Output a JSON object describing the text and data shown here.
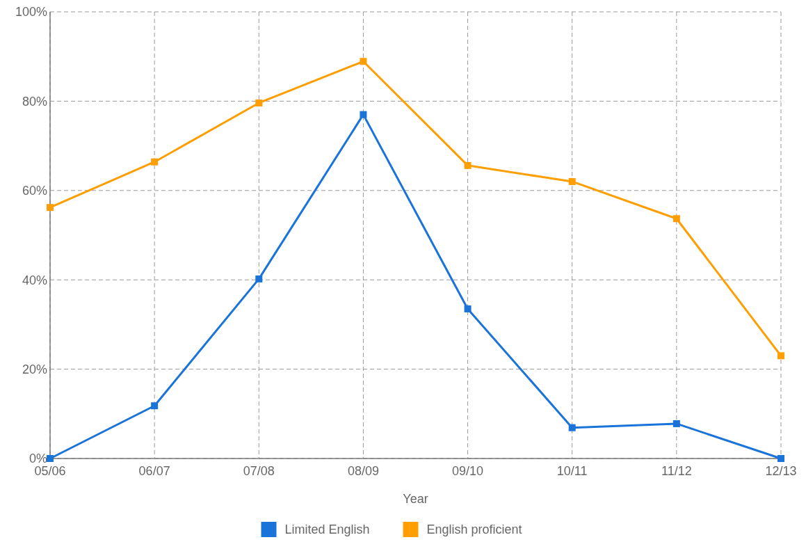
{
  "chart_data": {
    "type": "line",
    "xlabel": "Year",
    "categories": [
      "05/06",
      "06/07",
      "07/08",
      "08/09",
      "09/10",
      "10/11",
      "11/12",
      "12/13"
    ],
    "series": [
      {
        "name": "Limited English",
        "color": "#1a73d9",
        "values": [
          0,
          11.8,
          40.2,
          77,
          33.5,
          6.9,
          7.8,
          0
        ]
      },
      {
        "name": "English proficient",
        "color": "#ff9e00",
        "values": [
          56.2,
          66.4,
          79.6,
          88.9,
          65.6,
          62,
          53.7,
          23
        ]
      }
    ],
    "ylim": [
      0,
      100
    ],
    "yticks": [
      {
        "value": 0,
        "label": "0%"
      },
      {
        "value": 20,
        "label": "20%"
      },
      {
        "value": 40,
        "label": "40%"
      },
      {
        "value": 60,
        "label": "60%"
      },
      {
        "value": 80,
        "label": "80%"
      },
      {
        "value": 100,
        "label": "100%"
      }
    ],
    "grid": true,
    "legend": "bottom",
    "marker": "square",
    "line_style": "solid"
  }
}
